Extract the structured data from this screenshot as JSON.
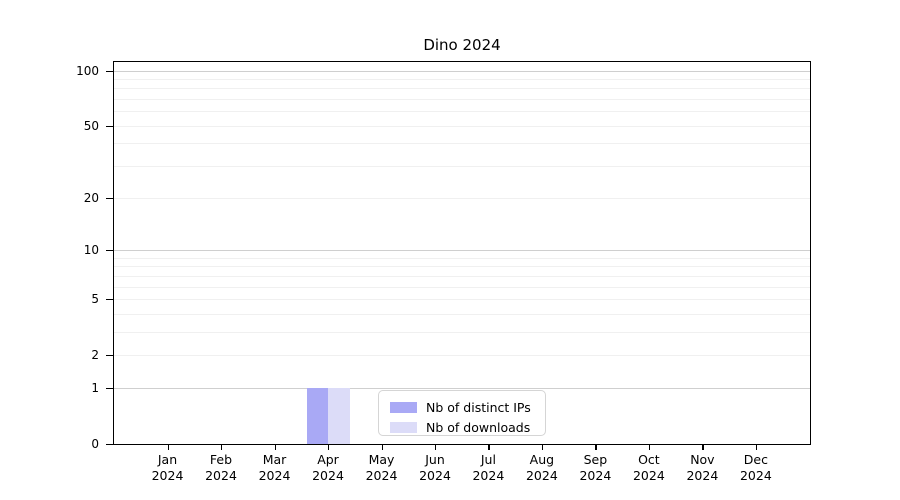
{
  "chart_data": {
    "type": "bar",
    "title": "Dino 2024",
    "categories": [
      {
        "month": "Jan",
        "year": "2024"
      },
      {
        "month": "Feb",
        "year": "2024"
      },
      {
        "month": "Mar",
        "year": "2024"
      },
      {
        "month": "Apr",
        "year": "2024"
      },
      {
        "month": "May",
        "year": "2024"
      },
      {
        "month": "Jun",
        "year": "2024"
      },
      {
        "month": "Jul",
        "year": "2024"
      },
      {
        "month": "Aug",
        "year": "2024"
      },
      {
        "month": "Sep",
        "year": "2024"
      },
      {
        "month": "Oct",
        "year": "2024"
      },
      {
        "month": "Nov",
        "year": "2024"
      },
      {
        "month": "Dec",
        "year": "2024"
      }
    ],
    "series": [
      {
        "name": "Nb of distinct IPs",
        "color": "#a9a9f5",
        "values": [
          0,
          0,
          0,
          1,
          0,
          0,
          0,
          0,
          0,
          0,
          0,
          0
        ]
      },
      {
        "name": "Nb of downloads",
        "color": "#dcdcf8",
        "values": [
          0,
          0,
          0,
          1,
          0,
          0,
          0,
          0,
          0,
          0,
          0,
          0
        ]
      }
    ],
    "y_axis": {
      "scale": "log1p",
      "tick_values": [
        100,
        50,
        20,
        10,
        5,
        2,
        1,
        0
      ],
      "major_gridlines": [
        1,
        10,
        100
      ],
      "minor_gridlines": [
        2,
        3,
        4,
        5,
        6,
        7,
        8,
        9,
        20,
        30,
        40,
        50,
        60,
        70,
        80,
        90
      ],
      "ylim": [
        0,
        112
      ]
    },
    "legend": {
      "position": "inside-bottom-center"
    },
    "colors": {
      "major_grid": "#cfcfcf",
      "minor_grid": "#f0f0f0"
    },
    "grid": "on"
  }
}
